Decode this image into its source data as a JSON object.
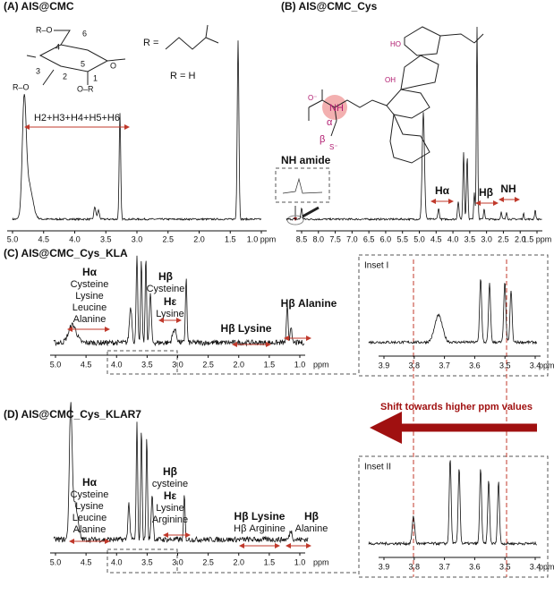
{
  "panels": [
    {
      "label": "(A) AIS@CMC",
      "ticks": [
        "5.0",
        "4.5",
        "4.0",
        "3.5",
        "3.0",
        "2.5",
        "2.0",
        "1.5",
        "1.0 ppm"
      ],
      "annotations": [
        "H2+H3+H4+H5+H6",
        "R =",
        "R = H"
      ],
      "structure_labels": [
        "R–O",
        "6",
        "4",
        "5",
        "3",
        "2",
        "1",
        "O–R",
        "R–O",
        "O"
      ]
    },
    {
      "label": "(B) AIS@CMC_Cys",
      "ticks": [
        "8.5",
        "8.0",
        "7.5",
        "7.0",
        "6.5",
        "6.0",
        "5.5",
        "5.0",
        "4.5",
        "4.0",
        "3.5",
        "3.0",
        "2.5",
        "2.0",
        "1.5 ppm"
      ],
      "annotations": [
        "NH amide",
        "Hα",
        "Hβ",
        "NH"
      ],
      "structure_labels": [
        "NH",
        "α",
        "β",
        "S⁻",
        "O⁻",
        "OH",
        "HO"
      ]
    },
    {
      "label": "(C) AIS@CMC_Cys_KLA",
      "ticks": [
        "5.0",
        "4.5",
        "4.0",
        "3.5",
        "3.0",
        "2.5",
        "2.0",
        "1.5",
        "1.0"
      ],
      "unit": "ppm",
      "groups": [
        [
          "Hα",
          "Cysteine",
          "Lysine",
          "Leucine",
          "Alanine"
        ],
        [
          "Hβ",
          "Cysteine"
        ],
        [
          "Hε",
          "Lysine"
        ],
        [
          "Hβ Lysine"
        ],
        [
          "Hβ Alanine"
        ]
      ],
      "inset": {
        "label": "Inset I",
        "ticks": [
          "3.9",
          "3.8",
          "3.7",
          "3.6",
          "3.5",
          "3.4"
        ],
        "unit": "ppm"
      }
    },
    {
      "label": "(D) AIS@CMC_Cys_KLAR7",
      "ticks": [
        "5.0",
        "4.5",
        "4.0",
        "3.5",
        "3.0",
        "2.5",
        "2.0",
        "1.5",
        "1.0"
      ],
      "unit": "ppm",
      "groups": [
        [
          "Hα",
          "Cysteine",
          "Lysine",
          "Leucine",
          "Alanine"
        ],
        [
          "Hβ",
          "cysteine"
        ],
        [
          "Hε",
          "Lysine",
          "Arginine"
        ],
        [
          "Hβ Lysine",
          "Hβ Arginine"
        ],
        [
          "Hβ",
          "Alanine"
        ]
      ],
      "inset": {
        "label": "Inset II",
        "ticks": [
          "3.9",
          "3.8",
          "3.7",
          "3.6",
          "3.5",
          "3.4"
        ],
        "unit": "ppm"
      }
    }
  ],
  "shift_note": "Shift towards higher ppm values"
}
